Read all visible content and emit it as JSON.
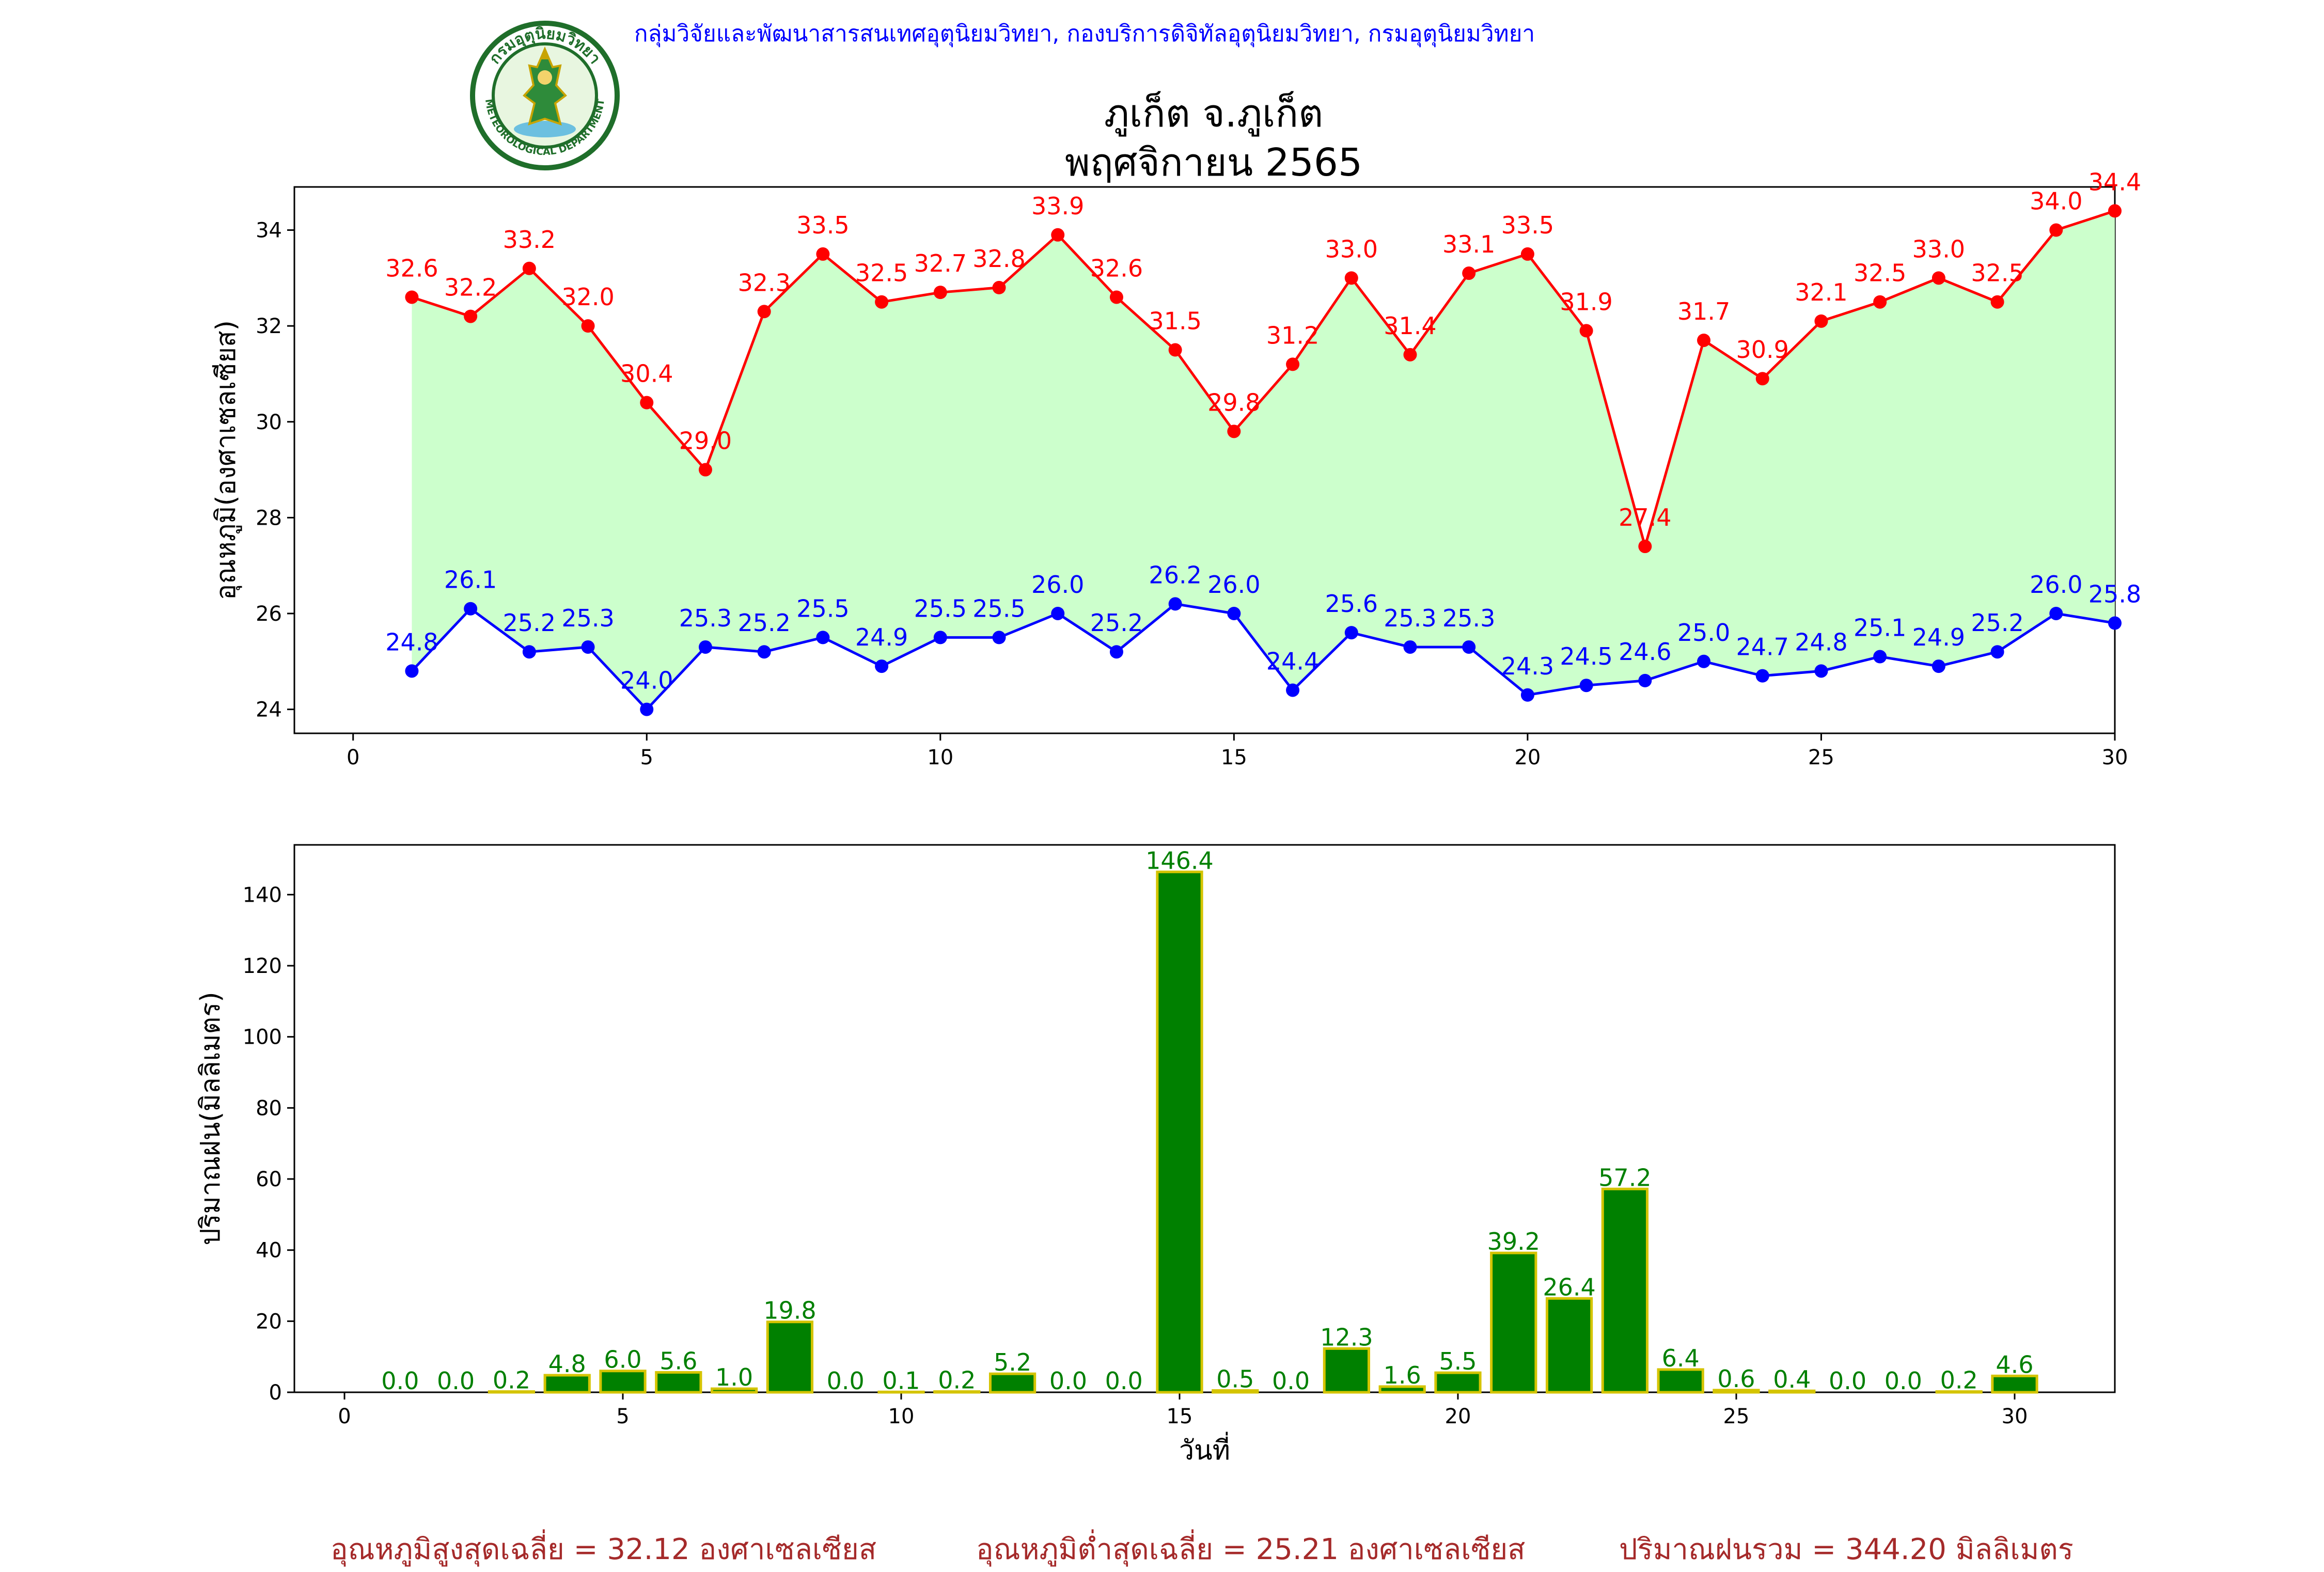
{
  "header": {
    "org_line": "กลุ่มวิจัยและพัฒนาสารสนเทศอุตุนิยมวิทยา, กองบริการดิจิทัลอุตุนิยมวิทยา, กรมอุตุนิยมวิทยา",
    "title_station": "ภูเก็ต จ.ภูเก็ต",
    "title_period": "พฤศจิกายน 2565",
    "logo": {
      "top_text": "กรมอุตุนิยมวิทยา",
      "bottom_text": "METEOROLOGICAL DEPARTMENT"
    }
  },
  "colors": {
    "max_temp": "#ff0000",
    "min_temp": "#0000ff",
    "fill": "#ccffcc",
    "rain_bar": "#008000",
    "rain_edge": "#d4c400",
    "rain_label": "#008000",
    "footer": "#a52a2a",
    "org_line": "#0000ff"
  },
  "chart_data": [
    {
      "type": "line",
      "ylabel": "อุณหภูมิ(องศาเซลเซียส)",
      "xlabel": "",
      "xlim": [
        -1.0,
        30.0
      ],
      "ylim": [
        23.5,
        34.9
      ],
      "xticks": [
        0,
        5,
        10,
        15,
        20,
        25,
        30
      ],
      "yticks": [
        24,
        26,
        28,
        30,
        32,
        34
      ],
      "fill_between": true,
      "x": [
        1,
        2,
        3,
        4,
        5,
        6,
        7,
        8,
        9,
        10,
        11,
        12,
        13,
        14,
        15,
        16,
        17,
        18,
        19,
        20,
        21,
        22,
        23,
        24,
        25,
        26,
        27,
        28,
        29,
        30
      ],
      "series": [
        {
          "name": "max",
          "values": [
            32.6,
            32.2,
            33.2,
            32.0,
            30.4,
            29.0,
            32.3,
            33.5,
            32.5,
            32.7,
            32.8,
            33.9,
            32.6,
            31.5,
            29.8,
            31.2,
            33.0,
            31.4,
            33.1,
            33.5,
            31.9,
            27.4,
            31.7,
            30.9,
            32.1,
            32.5,
            33.0,
            32.5,
            34.0,
            34.4
          ]
        },
        {
          "name": "min",
          "values": [
            24.8,
            26.1,
            25.2,
            25.3,
            24.0,
            25.3,
            25.2,
            25.5,
            24.9,
            25.5,
            25.5,
            26.0,
            25.2,
            26.2,
            26.0,
            24.4,
            25.6,
            25.3,
            25.3,
            24.3,
            24.5,
            24.6,
            25.0,
            24.7,
            24.8,
            25.1,
            24.9,
            25.2,
            26.0,
            25.8
          ]
        }
      ]
    },
    {
      "type": "bar",
      "ylabel": "ปริมาณฝน(มิลลิเมตร)",
      "xlabel": "วันที่",
      "xlim": [
        -0.9,
        31.8
      ],
      "ylim": [
        0,
        154
      ],
      "xticks": [
        0,
        5,
        10,
        15,
        20,
        25,
        30
      ],
      "yticks": [
        0,
        20,
        40,
        60,
        80,
        100,
        120,
        140
      ],
      "x": [
        1,
        2,
        3,
        4,
        5,
        6,
        7,
        8,
        9,
        10,
        11,
        12,
        13,
        14,
        15,
        16,
        17,
        18,
        19,
        20,
        21,
        22,
        23,
        24,
        25,
        26,
        27,
        28,
        29,
        30
      ],
      "values": [
        0.0,
        0.0,
        0.2,
        4.8,
        6.0,
        5.6,
        1.0,
        19.8,
        0.0,
        0.1,
        0.2,
        5.2,
        0.0,
        0.0,
        146.4,
        0.5,
        0.0,
        12.3,
        1.6,
        5.5,
        39.2,
        26.4,
        57.2,
        6.4,
        0.6,
        0.4,
        0.0,
        0.0,
        0.2,
        4.6
      ]
    }
  ],
  "footer": {
    "avg_max": "อุณหภูมิสูงสุดเฉลี่ย = 32.12 องศาเซลเซียส",
    "avg_min": "อุณหภูมิต่ำสุดเฉลี่ย = 25.21 องศาเซลเซียส",
    "total_rain": "ปริมาณฝนรวม = 344.20 มิลลิเมตร"
  }
}
